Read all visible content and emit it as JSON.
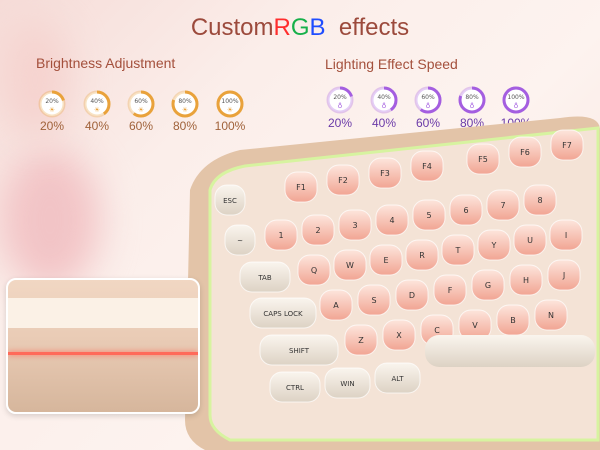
{
  "title": {
    "part1": "Custom",
    "r": "R",
    "g": "G",
    "b": "B",
    "part2": "effects"
  },
  "brightness": {
    "label": "Brightness Adjustment",
    "color": "#e9a23b",
    "levels": [
      {
        "inner": "20%",
        "label": "20%",
        "value": 20
      },
      {
        "inner": "40%",
        "label": "40%",
        "value": 40
      },
      {
        "inner": "60%",
        "label": "60%",
        "value": 60
      },
      {
        "inner": "80%",
        "label": "80%",
        "value": 80
      },
      {
        "inner": "100%",
        "label": "100%",
        "value": 100
      }
    ],
    "icon": "sun-icon"
  },
  "speed": {
    "label": "Lighting Effect Speed",
    "color": "#a45ee0",
    "levels": [
      {
        "inner": "20%",
        "label": "20%",
        "value": 20
      },
      {
        "inner": "40%",
        "label": "40%",
        "value": 40
      },
      {
        "inner": "60%",
        "label": "60%",
        "value": 60
      },
      {
        "inner": "80%",
        "label": "80%",
        "value": 80
      },
      {
        "inner": "100%",
        "label": "100%",
        "value": 100
      }
    ],
    "icon": "lightbulb-icon"
  },
  "keyboard": {
    "modifiers": [
      "ESC",
      "~",
      "TAB",
      "CAPS LOCK",
      "SHIFT",
      "CTRL",
      "WIN",
      "ALT"
    ],
    "fkeys": [
      "F1",
      "F2",
      "F3",
      "F4",
      "F5",
      "F6",
      "F7"
    ],
    "numrow": [
      "1",
      "2",
      "3",
      "4",
      "5",
      "6",
      "7",
      "8"
    ],
    "row_q": [
      "Q",
      "W",
      "E",
      "R",
      "T",
      "Y",
      "U",
      "I"
    ],
    "row_a": [
      "A",
      "S",
      "D",
      "F",
      "G",
      "H",
      "J"
    ],
    "row_z": [
      "Z",
      "X",
      "C",
      "V",
      "B",
      "N"
    ]
  }
}
